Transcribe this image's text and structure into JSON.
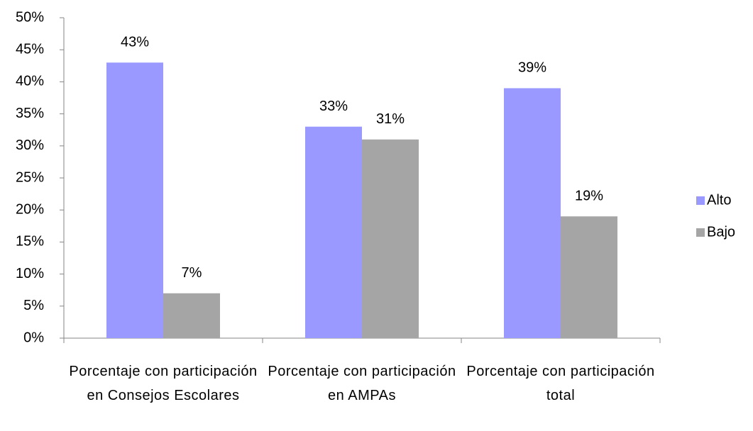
{
  "chart_data": {
    "type": "bar",
    "categories": [
      "Porcentaje con participación en Consejos Escolares",
      "Porcentaje con participación en AMPAs",
      "Porcentaje con participación total"
    ],
    "series": [
      {
        "name": "Alto",
        "color": "#9999ff",
        "values": [
          43,
          33,
          39
        ],
        "value_labels": [
          "43%",
          "33%",
          "39%"
        ]
      },
      {
        "name": "Bajo",
        "color": "#a5a5a5",
        "values": [
          7,
          31,
          19
        ],
        "value_labels": [
          "7%",
          "31%",
          "19%"
        ]
      }
    ],
    "ylim": [
      0,
      50
    ],
    "yticks": [
      {
        "value": 0,
        "label": "0%"
      },
      {
        "value": 5,
        "label": "5%"
      },
      {
        "value": 10,
        "label": "10%"
      },
      {
        "value": 15,
        "label": "15%"
      },
      {
        "value": 20,
        "label": "20%"
      },
      {
        "value": 25,
        "label": "25%"
      },
      {
        "value": 30,
        "label": "30%"
      },
      {
        "value": 35,
        "label": "35%"
      },
      {
        "value": 40,
        "label": "40%"
      },
      {
        "value": 45,
        "label": "45%"
      },
      {
        "value": 50,
        "label": "50%"
      }
    ],
    "grid": false,
    "legend": "right"
  }
}
